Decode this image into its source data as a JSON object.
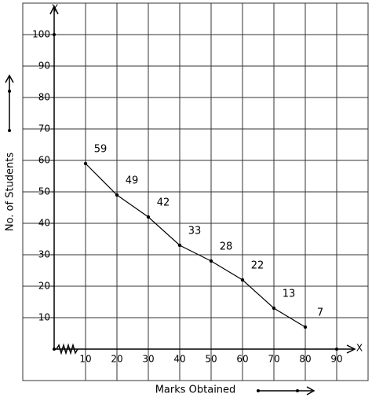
{
  "chart_data": {
    "type": "line",
    "x_axis_name": "X",
    "y_axis_name": "Y",
    "xlabel": "Marks Obtained",
    "ylabel": "No. of Students",
    "x": [
      10,
      20,
      30,
      40,
      50,
      60,
      70,
      80
    ],
    "values": [
      59,
      49,
      42,
      33,
      28,
      22,
      13,
      7
    ],
    "color": "#000000",
    "xlim": [
      -10,
      100
    ],
    "ylim": [
      -10,
      110
    ],
    "xticks": [
      10,
      20,
      30,
      40,
      50,
      60,
      70,
      80,
      90
    ],
    "yticks": [
      10,
      20,
      30,
      40,
      50,
      60,
      70,
      80,
      90,
      100
    ],
    "grid": true
  }
}
